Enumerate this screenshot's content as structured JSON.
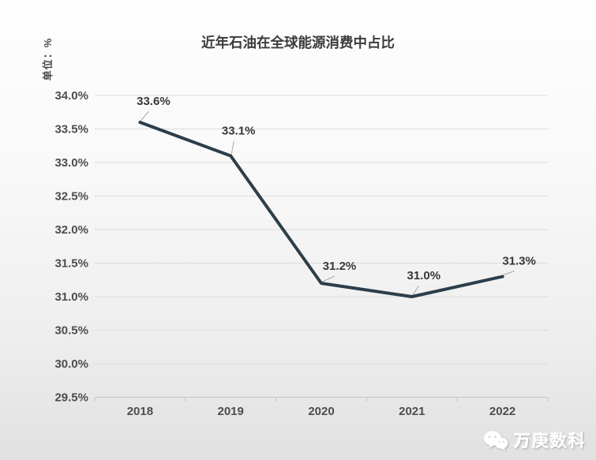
{
  "title": "近年石油在全球能源消费中占比",
  "y_unit_label": "单位：%",
  "watermark": {
    "icon": "wechat-icon",
    "text": "万庚数科"
  },
  "colors": {
    "line": "#2c3e4a",
    "gridline": "#dcdcdc",
    "axis": "#c4c4c4",
    "tick_text": "#4d4d4d",
    "data_label_text": "#383838",
    "leader_line": "#a8a8a8"
  },
  "chart_data": {
    "type": "line",
    "title": "近年石油在全球能源消费中占比",
    "ylabel": "单位：%",
    "categories": [
      "2018",
      "2019",
      "2020",
      "2021",
      "2022"
    ],
    "values": [
      33.6,
      33.1,
      31.2,
      31.0,
      31.3
    ],
    "data_labels": [
      "33.6%",
      "33.1%",
      "31.2%",
      "31.0%",
      "31.3%"
    ],
    "ylim": [
      29.5,
      34.0
    ],
    "ytick_step": 0.5,
    "ytick_labels": [
      "34.0%",
      "33.5%",
      "33.0%",
      "32.5%",
      "32.0%",
      "31.5%",
      "31.0%",
      "30.5%",
      "30.0%",
      "29.5%"
    ],
    "grid": "horizontal-only",
    "legend": "none",
    "series_count": 1
  }
}
